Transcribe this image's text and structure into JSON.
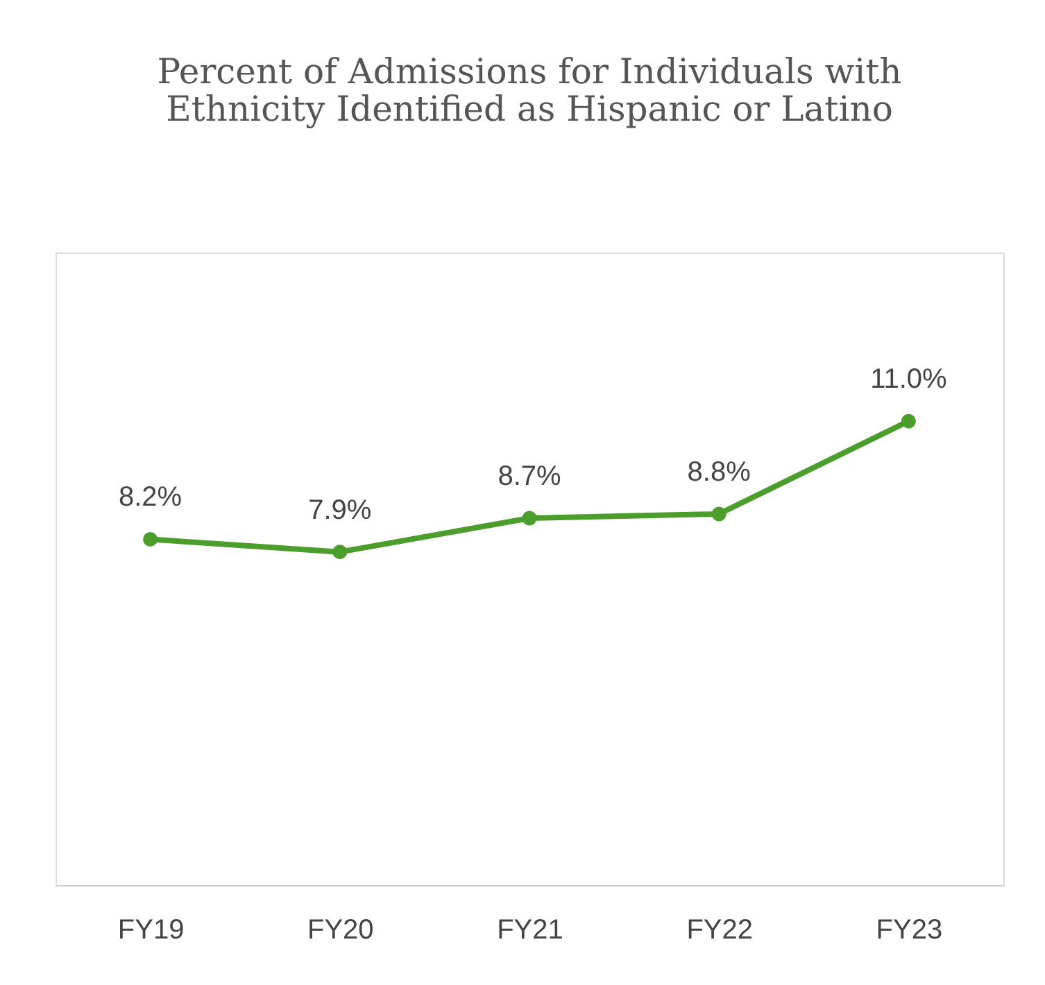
{
  "chart_data": {
    "type": "line",
    "title": [
      "Percent of Admissions for Individuals with",
      "Ethnicity Identified as Hispanic or Latino"
    ],
    "categories": [
      "FY19",
      "FY20",
      "FY21",
      "FY22",
      "FY23"
    ],
    "series": [
      {
        "color": "#4b9e2c",
        "values": [
          8.2,
          7.9,
          8.7,
          8.8,
          11.0
        ],
        "value_labels": [
          "8.2%",
          "7.9%",
          "8.7%",
          "8.8%",
          "11.0%"
        ]
      }
    ],
    "ylim": [
      0,
      15
    ],
    "tick_labels": "x",
    "grid": false,
    "marker": "circle",
    "line_style": "solid"
  }
}
